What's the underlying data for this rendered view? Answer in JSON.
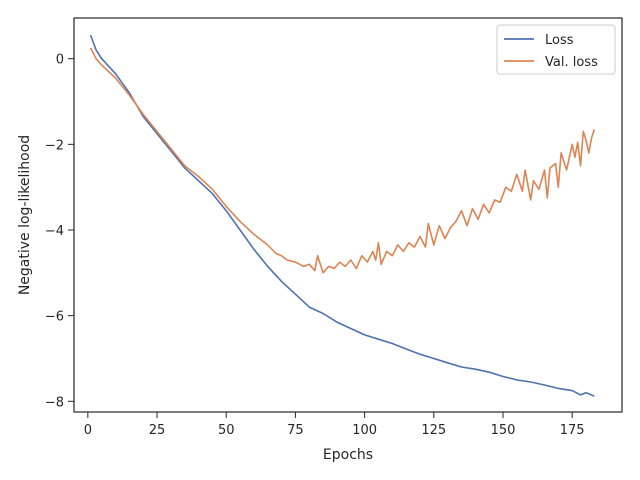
{
  "chart_data": {
    "type": "line",
    "xlabel": "Epochs",
    "ylabel": "Negative log-likelihood",
    "xlim": [
      -5,
      193
    ],
    "ylim": [
      -8.25,
      0.95
    ],
    "xticks": [
      0,
      25,
      50,
      75,
      100,
      125,
      150,
      175
    ],
    "yticks": [
      -8,
      -6,
      -4,
      -2,
      0
    ],
    "grid": false,
    "legend_position": "top-right",
    "series": [
      {
        "name": "Loss",
        "color": "#4c72b0",
        "points": [
          [
            1,
            0.55
          ],
          [
            3,
            0.2
          ],
          [
            5,
            0.0
          ],
          [
            10,
            -0.35
          ],
          [
            15,
            -0.8
          ],
          [
            20,
            -1.35
          ],
          [
            25,
            -1.75
          ],
          [
            30,
            -2.15
          ],
          [
            35,
            -2.55
          ],
          [
            40,
            -2.85
          ],
          [
            45,
            -3.15
          ],
          [
            50,
            -3.55
          ],
          [
            55,
            -4.0
          ],
          [
            60,
            -4.45
          ],
          [
            65,
            -4.85
          ],
          [
            70,
            -5.2
          ],
          [
            75,
            -5.5
          ],
          [
            80,
            -5.8
          ],
          [
            85,
            -5.95
          ],
          [
            90,
            -6.15
          ],
          [
            95,
            -6.3
          ],
          [
            100,
            -6.45
          ],
          [
            105,
            -6.55
          ],
          [
            110,
            -6.65
          ],
          [
            115,
            -6.78
          ],
          [
            120,
            -6.9
          ],
          [
            125,
            -7.0
          ],
          [
            130,
            -7.1
          ],
          [
            135,
            -7.2
          ],
          [
            140,
            -7.25
          ],
          [
            145,
            -7.32
          ],
          [
            150,
            -7.42
          ],
          [
            155,
            -7.5
          ],
          [
            160,
            -7.55
          ],
          [
            165,
            -7.62
          ],
          [
            170,
            -7.7
          ],
          [
            175,
            -7.75
          ],
          [
            178,
            -7.85
          ],
          [
            180,
            -7.8
          ],
          [
            183,
            -7.88
          ]
        ]
      },
      {
        "name": "Val. loss",
        "color": "#dd8452",
        "points": [
          [
            1,
            0.25
          ],
          [
            3,
            0.0
          ],
          [
            5,
            -0.15
          ],
          [
            10,
            -0.45
          ],
          [
            15,
            -0.85
          ],
          [
            20,
            -1.3
          ],
          [
            25,
            -1.7
          ],
          [
            30,
            -2.1
          ],
          [
            35,
            -2.5
          ],
          [
            40,
            -2.75
          ],
          [
            45,
            -3.05
          ],
          [
            50,
            -3.45
          ],
          [
            55,
            -3.8
          ],
          [
            60,
            -4.1
          ],
          [
            65,
            -4.35
          ],
          [
            68,
            -4.55
          ],
          [
            70,
            -4.6
          ],
          [
            72,
            -4.7
          ],
          [
            75,
            -4.75
          ],
          [
            78,
            -4.85
          ],
          [
            80,
            -4.8
          ],
          [
            82,
            -4.95
          ],
          [
            83,
            -4.6
          ],
          [
            85,
            -5.0
          ],
          [
            87,
            -4.85
          ],
          [
            89,
            -4.9
          ],
          [
            91,
            -4.75
          ],
          [
            93,
            -4.85
          ],
          [
            95,
            -4.7
          ],
          [
            97,
            -4.9
          ],
          [
            99,
            -4.6
          ],
          [
            101,
            -4.75
          ],
          [
            103,
            -4.5
          ],
          [
            104,
            -4.7
          ],
          [
            105,
            -4.3
          ],
          [
            106,
            -4.8
          ],
          [
            108,
            -4.5
          ],
          [
            110,
            -4.6
          ],
          [
            112,
            -4.35
          ],
          [
            114,
            -4.5
          ],
          [
            116,
            -4.3
          ],
          [
            118,
            -4.4
          ],
          [
            120,
            -4.15
          ],
          [
            122,
            -4.4
          ],
          [
            123,
            -3.85
          ],
          [
            125,
            -4.35
          ],
          [
            127,
            -3.9
          ],
          [
            129,
            -4.2
          ],
          [
            131,
            -3.95
          ],
          [
            133,
            -3.8
          ],
          [
            135,
            -3.55
          ],
          [
            137,
            -3.9
          ],
          [
            139,
            -3.5
          ],
          [
            141,
            -3.75
          ],
          [
            143,
            -3.4
          ],
          [
            145,
            -3.6
          ],
          [
            147,
            -3.3
          ],
          [
            149,
            -3.35
          ],
          [
            151,
            -3.0
          ],
          [
            153,
            -3.1
          ],
          [
            155,
            -2.7
          ],
          [
            157,
            -3.1
          ],
          [
            158,
            -2.6
          ],
          [
            160,
            -3.3
          ],
          [
            161,
            -2.85
          ],
          [
            163,
            -3.05
          ],
          [
            165,
            -2.6
          ],
          [
            166,
            -3.25
          ],
          [
            167,
            -2.55
          ],
          [
            169,
            -2.45
          ],
          [
            170,
            -3.0
          ],
          [
            171,
            -2.2
          ],
          [
            173,
            -2.6
          ],
          [
            175,
            -2.0
          ],
          [
            176,
            -2.3
          ],
          [
            177,
            -1.95
          ],
          [
            178,
            -2.5
          ],
          [
            179,
            -1.7
          ],
          [
            180,
            -1.9
          ],
          [
            181,
            -2.2
          ],
          [
            182,
            -1.85
          ],
          [
            183,
            -1.65
          ]
        ]
      }
    ]
  }
}
